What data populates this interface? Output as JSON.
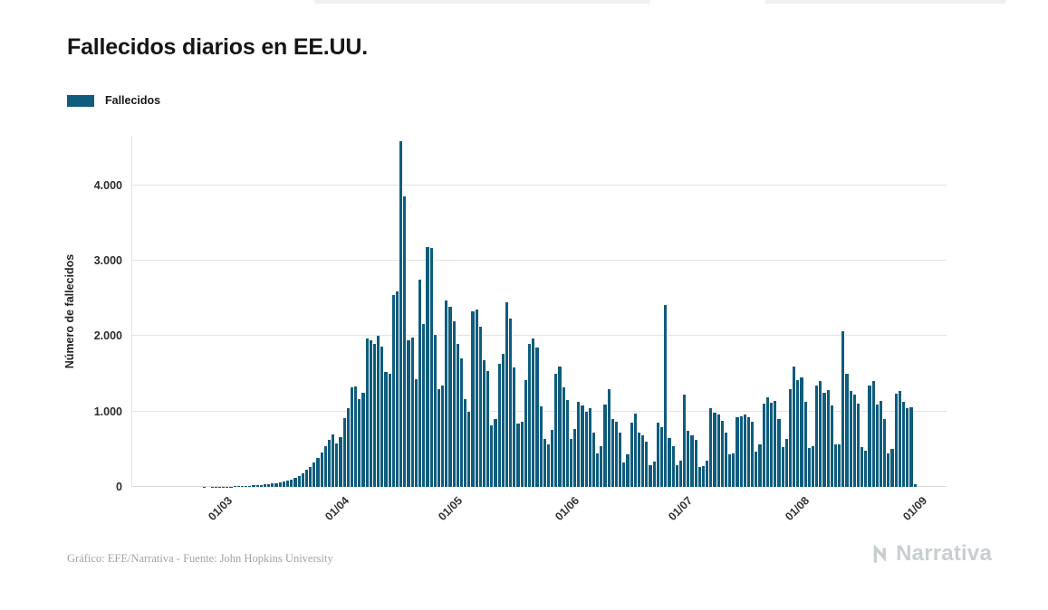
{
  "page": {
    "title": "Fallecidos diarios en EE.UU.",
    "legend": {
      "label": "Fallecidos",
      "color": "#0f5c7c"
    },
    "footer": "Gráfico: EFE/Narrativa - Fuente: John Hopkins University",
    "brand": "Narrativa"
  },
  "chart_data": {
    "type": "bar",
    "title": "Fallecidos diarios en EE.UU.",
    "ylabel": "Número de fallecidos",
    "xlabel": "",
    "bar_color": "#0f5c7c",
    "grid": "horizontal",
    "legend_position": "top-left",
    "ylim": [
      0,
      4660
    ],
    "y_ticks": [
      {
        "value": 0,
        "label": "0"
      },
      {
        "value": 1000,
        "label": "1.000"
      },
      {
        "value": 2000,
        "label": "2.000"
      },
      {
        "value": 3000,
        "label": "3.000"
      },
      {
        "value": 4000,
        "label": "4.000"
      }
    ],
    "x_unit": "day",
    "x_start_label": "15/02",
    "x_domain_days": 216,
    "bars_start_day": 10,
    "x_ticks": [
      {
        "day": 25,
        "label": "01/03"
      },
      {
        "day": 56,
        "label": "01/04"
      },
      {
        "day": 86,
        "label": "01/05"
      },
      {
        "day": 117,
        "label": "01/06"
      },
      {
        "day": 147,
        "label": "01/07"
      },
      {
        "day": 178,
        "label": "01/08"
      },
      {
        "day": 209,
        "label": "01/09"
      }
    ],
    "series": [
      {
        "name": "Fallecidos",
        "values": [
          0,
          0,
          0,
          0,
          0,
          0,
          0,
          0,
          0,
          1,
          0,
          1,
          1,
          2,
          1,
          5,
          6,
          8,
          10,
          12,
          14,
          18,
          21,
          25,
          28,
          32,
          38,
          45,
          52,
          60,
          70,
          85,
          100,
          120,
          150,
          185,
          225,
          270,
          325,
          390,
          460,
          540,
          620,
          700,
          580,
          660,
          910,
          1050,
          1320,
          1330,
          1170,
          1250,
          1970,
          1940,
          1900,
          2000,
          1860,
          1530,
          1500,
          2550,
          2600,
          4590,
          3860,
          1950,
          1980,
          1430,
          2750,
          2160,
          3180,
          3170,
          2020,
          1300,
          1350,
          2470,
          2390,
          2200,
          1900,
          1700,
          1160,
          1000,
          2330,
          2350,
          2130,
          1680,
          1540,
          820,
          900,
          1630,
          1770,
          2450,
          2240,
          1580,
          840,
          860,
          1420,
          1900,
          1970,
          1850,
          1070,
          640,
          570,
          760,
          1500,
          1600,
          1320,
          1150,
          640,
          770,
          1130,
          1080,
          1000,
          1050,
          720,
          440,
          540,
          1090,
          1300,
          900,
          870,
          720,
          320,
          430,
          850,
          970,
          720,
          680,
          600,
          290,
          340,
          850,
          790,
          2420,
          650,
          540,
          290,
          350,
          1220,
          740,
          690,
          620,
          270,
          280,
          350,
          1040,
          990,
          960,
          880,
          720,
          430,
          440,
          930,
          940,
          960,
          920,
          860,
          470,
          560,
          1110,
          1190,
          1120,
          1140,
          900,
          530,
          640,
          1300,
          1600,
          1420,
          1450,
          1130,
          520,
          540,
          1350,
          1410,
          1250,
          1290,
          1080,
          560,
          570,
          2060,
          1500,
          1270,
          1230,
          1110,
          530,
          480,
          1350,
          1400,
          1090,
          1140,
          900,
          440,
          510,
          1240,
          1270,
          1130,
          1050,
          1060,
          40
        ]
      }
    ]
  }
}
